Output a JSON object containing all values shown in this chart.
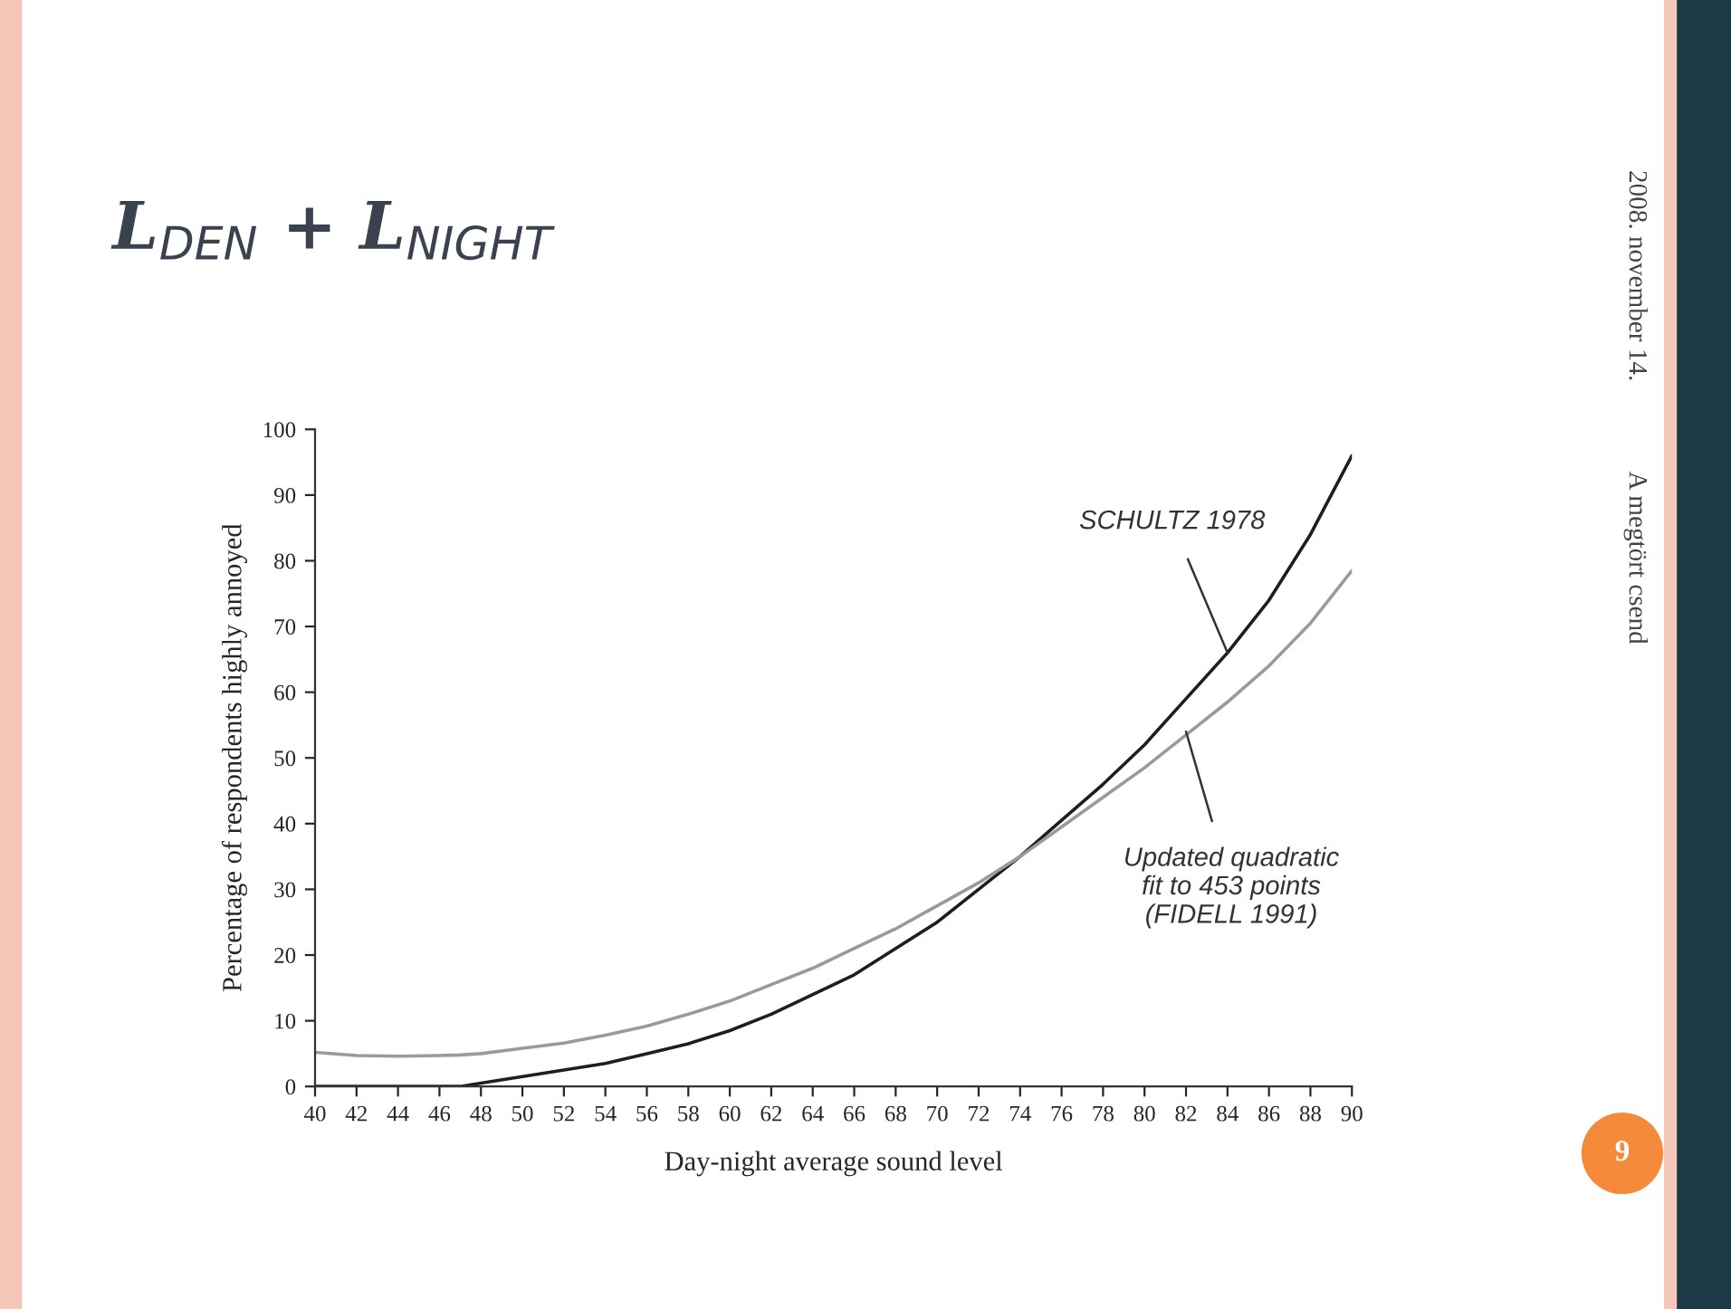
{
  "chart_data": {
    "type": "line",
    "title": "L$_{DEN}$ + L$_{NIGHT}$",
    "xlabel": "Day-night average sound level",
    "ylabel": "Percentage of respondents highly annoyed",
    "x": [
      40,
      42,
      44,
      46,
      47,
      48,
      50,
      52,
      54,
      56,
      58,
      60,
      62,
      64,
      66,
      68,
      70,
      72,
      74,
      76,
      78,
      80,
      82,
      84,
      86,
      88,
      90
    ],
    "series": [
      {
        "color": "#1e1e1e",
        "values": [
          0,
          0,
          0,
          0,
          0,
          0.5,
          1.5,
          2.5,
          3.5,
          5,
          6.5,
          8.5,
          11,
          14,
          17,
          21,
          25,
          30,
          35,
          40.5,
          46,
          52,
          59,
          66,
          74,
          84,
          96
        ]
      },
      {
        "color": "#9a9a9a",
        "values": [
          5.2,
          4.7,
          4.6,
          4.7,
          4.8,
          5,
          5.8,
          6.6,
          7.8,
          9.2,
          11,
          13,
          15.5,
          18,
          21,
          24,
          27.5,
          31,
          35,
          39.5,
          44,
          48.5,
          53.5,
          58.5,
          64,
          70.5,
          78.5
        ]
      }
    ],
    "xlim": [
      40,
      90
    ],
    "xticks": [
      40,
      42,
      44,
      46,
      48,
      50,
      52,
      54,
      56,
      58,
      60,
      62,
      64,
      66,
      68,
      70,
      72,
      74,
      76,
      78,
      80,
      82,
      84,
      86,
      88,
      90
    ],
    "ylim": [
      0,
      100
    ],
    "yticks": [
      0,
      10,
      20,
      30,
      40,
      50,
      60,
      70,
      80,
      90,
      100
    ],
    "grid": false,
    "legend": false,
    "annotations": [
      {
        "text": "SCHULTZ 1978",
        "x": 84,
        "y": 66
      },
      {
        "text": "Updated quadratic\nfit to 453 points\n(FIDELL 1991)",
        "x": 82,
        "y": 54
      },
      "2008. november 14.",
      "A megtört csend",
      "9"
    ]
  }
}
